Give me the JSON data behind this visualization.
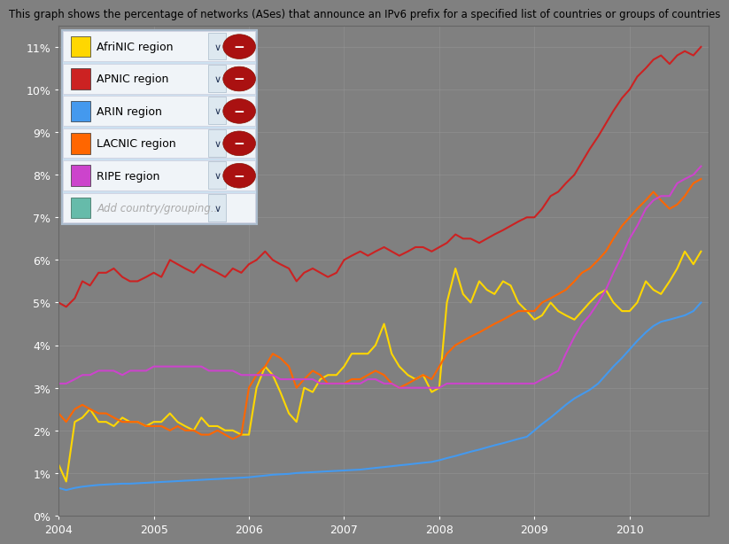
{
  "title": "This graph shows the percentage of networks (ASes) that announce an IPv6 prefix for a specified list of countries or groups of countries",
  "title_fontsize": 8.5,
  "background_color": "#808080",
  "plot_bg_color": "#808080",
  "ylim": [
    0,
    0.115
  ],
  "xlim_start": 2004.0,
  "xlim_end": 2010.83,
  "yticks": [
    0,
    0.01,
    0.02,
    0.03,
    0.04,
    0.05,
    0.06,
    0.07,
    0.08,
    0.09,
    0.1,
    0.11
  ],
  "ytick_labels": [
    "0%",
    "1%",
    "2%",
    "3%",
    "4%",
    "5%",
    "6%",
    "7%",
    "8%",
    "9%",
    "10%",
    "11%"
  ],
  "xtick_positions": [
    2004,
    2005,
    2006,
    2007,
    2008,
    2009,
    2010
  ],
  "xtick_labels": [
    "2004",
    "2005",
    "2006",
    "2007",
    "2008",
    "2009",
    "2010"
  ],
  "series": [
    {
      "name": "AfriNIC region",
      "color": "#FFD700",
      "lw": 1.5,
      "x": [
        2004.0,
        2004.08,
        2004.17,
        2004.25,
        2004.33,
        2004.42,
        2004.5,
        2004.58,
        2004.67,
        2004.75,
        2004.83,
        2004.92,
        2005.0,
        2005.08,
        2005.17,
        2005.25,
        2005.33,
        2005.42,
        2005.5,
        2005.58,
        2005.67,
        2005.75,
        2005.83,
        2005.92,
        2006.0,
        2006.08,
        2006.17,
        2006.25,
        2006.33,
        2006.42,
        2006.5,
        2006.58,
        2006.67,
        2006.75,
        2006.83,
        2006.92,
        2007.0,
        2007.08,
        2007.17,
        2007.25,
        2007.33,
        2007.42,
        2007.5,
        2007.58,
        2007.67,
        2007.75,
        2007.83,
        2007.92,
        2008.0,
        2008.08,
        2008.17,
        2008.25,
        2008.33,
        2008.42,
        2008.5,
        2008.58,
        2008.67,
        2008.75,
        2008.83,
        2008.92,
        2009.0,
        2009.08,
        2009.17,
        2009.25,
        2009.33,
        2009.42,
        2009.5,
        2009.58,
        2009.67,
        2009.75,
        2009.83,
        2009.92,
        2010.0,
        2010.08,
        2010.17,
        2010.25,
        2010.33,
        2010.42,
        2010.5,
        2010.58,
        2010.67,
        2010.75
      ],
      "y": [
        0.012,
        0.008,
        0.022,
        0.023,
        0.025,
        0.022,
        0.022,
        0.021,
        0.023,
        0.022,
        0.022,
        0.021,
        0.022,
        0.022,
        0.024,
        0.022,
        0.021,
        0.02,
        0.023,
        0.021,
        0.021,
        0.02,
        0.02,
        0.019,
        0.019,
        0.03,
        0.035,
        0.033,
        0.029,
        0.024,
        0.022,
        0.03,
        0.029,
        0.032,
        0.033,
        0.033,
        0.035,
        0.038,
        0.038,
        0.038,
        0.04,
        0.045,
        0.038,
        0.035,
        0.033,
        0.032,
        0.033,
        0.029,
        0.03,
        0.05,
        0.058,
        0.052,
        0.05,
        0.055,
        0.053,
        0.052,
        0.055,
        0.054,
        0.05,
        0.048,
        0.046,
        0.047,
        0.05,
        0.048,
        0.047,
        0.046,
        0.048,
        0.05,
        0.052,
        0.053,
        0.05,
        0.048,
        0.048,
        0.05,
        0.055,
        0.053,
        0.052,
        0.055,
        0.058,
        0.062,
        0.059,
        0.062
      ]
    },
    {
      "name": "APNIC region",
      "color": "#CC2222",
      "lw": 1.5,
      "x": [
        2004.0,
        2004.08,
        2004.17,
        2004.25,
        2004.33,
        2004.42,
        2004.5,
        2004.58,
        2004.67,
        2004.75,
        2004.83,
        2004.92,
        2005.0,
        2005.08,
        2005.17,
        2005.25,
        2005.33,
        2005.42,
        2005.5,
        2005.58,
        2005.67,
        2005.75,
        2005.83,
        2005.92,
        2006.0,
        2006.08,
        2006.17,
        2006.25,
        2006.33,
        2006.42,
        2006.5,
        2006.58,
        2006.67,
        2006.75,
        2006.83,
        2006.92,
        2007.0,
        2007.08,
        2007.17,
        2007.25,
        2007.33,
        2007.42,
        2007.5,
        2007.58,
        2007.67,
        2007.75,
        2007.83,
        2007.92,
        2008.0,
        2008.08,
        2008.17,
        2008.25,
        2008.33,
        2008.42,
        2008.5,
        2008.58,
        2008.67,
        2008.75,
        2008.83,
        2008.92,
        2009.0,
        2009.08,
        2009.17,
        2009.25,
        2009.33,
        2009.42,
        2009.5,
        2009.58,
        2009.67,
        2009.75,
        2009.83,
        2009.92,
        2010.0,
        2010.08,
        2010.17,
        2010.25,
        2010.33,
        2010.42,
        2010.5,
        2010.58,
        2010.67,
        2010.75
      ],
      "y": [
        0.05,
        0.049,
        0.051,
        0.055,
        0.054,
        0.057,
        0.057,
        0.058,
        0.056,
        0.055,
        0.055,
        0.056,
        0.057,
        0.056,
        0.06,
        0.059,
        0.058,
        0.057,
        0.059,
        0.058,
        0.057,
        0.056,
        0.058,
        0.057,
        0.059,
        0.06,
        0.062,
        0.06,
        0.059,
        0.058,
        0.055,
        0.057,
        0.058,
        0.057,
        0.056,
        0.057,
        0.06,
        0.061,
        0.062,
        0.061,
        0.062,
        0.063,
        0.062,
        0.061,
        0.062,
        0.063,
        0.063,
        0.062,
        0.063,
        0.064,
        0.066,
        0.065,
        0.065,
        0.064,
        0.065,
        0.066,
        0.067,
        0.068,
        0.069,
        0.07,
        0.07,
        0.072,
        0.075,
        0.076,
        0.078,
        0.08,
        0.083,
        0.086,
        0.089,
        0.092,
        0.095,
        0.098,
        0.1,
        0.103,
        0.105,
        0.107,
        0.108,
        0.106,
        0.108,
        0.109,
        0.108,
        0.11
      ]
    },
    {
      "name": "ARIN region",
      "color": "#4499EE",
      "lw": 1.5,
      "x": [
        2004.0,
        2004.08,
        2004.17,
        2004.25,
        2004.33,
        2004.42,
        2004.5,
        2004.58,
        2004.67,
        2004.75,
        2004.83,
        2004.92,
        2005.0,
        2005.08,
        2005.17,
        2005.25,
        2005.33,
        2005.42,
        2005.5,
        2005.58,
        2005.67,
        2005.75,
        2005.83,
        2005.92,
        2006.0,
        2006.08,
        2006.17,
        2006.25,
        2006.33,
        2006.42,
        2006.5,
        2006.58,
        2006.67,
        2006.75,
        2006.83,
        2006.92,
        2007.0,
        2007.08,
        2007.17,
        2007.25,
        2007.33,
        2007.42,
        2007.5,
        2007.58,
        2007.67,
        2007.75,
        2007.83,
        2007.92,
        2008.0,
        2008.08,
        2008.17,
        2008.25,
        2008.33,
        2008.42,
        2008.5,
        2008.58,
        2008.67,
        2008.75,
        2008.83,
        2008.92,
        2009.0,
        2009.08,
        2009.17,
        2009.25,
        2009.33,
        2009.42,
        2009.5,
        2009.58,
        2009.67,
        2009.75,
        2009.83,
        2009.92,
        2010.0,
        2010.08,
        2010.17,
        2010.25,
        2010.33,
        2010.42,
        2010.5,
        2010.58,
        2010.67,
        2010.75
      ],
      "y": [
        0.0065,
        0.006,
        0.0065,
        0.0068,
        0.007,
        0.0072,
        0.0073,
        0.0074,
        0.0075,
        0.0075,
        0.0076,
        0.0077,
        0.0078,
        0.0079,
        0.008,
        0.0081,
        0.0082,
        0.0083,
        0.0084,
        0.0085,
        0.0086,
        0.0087,
        0.0088,
        0.0089,
        0.009,
        0.0092,
        0.0094,
        0.0096,
        0.0097,
        0.0098,
        0.01,
        0.0101,
        0.0102,
        0.0103,
        0.0104,
        0.0105,
        0.0106,
        0.0107,
        0.0108,
        0.011,
        0.0112,
        0.0114,
        0.0116,
        0.0118,
        0.012,
        0.0122,
        0.0124,
        0.0126,
        0.013,
        0.0135,
        0.014,
        0.0145,
        0.015,
        0.0155,
        0.016,
        0.0165,
        0.017,
        0.0175,
        0.018,
        0.0185,
        0.02,
        0.0215,
        0.023,
        0.0245,
        0.026,
        0.0275,
        0.0285,
        0.0295,
        0.031,
        0.033,
        0.035,
        0.037,
        0.039,
        0.041,
        0.043,
        0.0445,
        0.0455,
        0.046,
        0.0465,
        0.047,
        0.048,
        0.05
      ]
    },
    {
      "name": "LACNIC region",
      "color": "#FF6600",
      "lw": 1.5,
      "x": [
        2004.0,
        2004.08,
        2004.17,
        2004.25,
        2004.33,
        2004.42,
        2004.5,
        2004.58,
        2004.67,
        2004.75,
        2004.83,
        2004.92,
        2005.0,
        2005.08,
        2005.17,
        2005.25,
        2005.33,
        2005.42,
        2005.5,
        2005.58,
        2005.67,
        2005.75,
        2005.83,
        2005.92,
        2006.0,
        2006.08,
        2006.17,
        2006.25,
        2006.33,
        2006.42,
        2006.5,
        2006.58,
        2006.67,
        2006.75,
        2006.83,
        2006.92,
        2007.0,
        2007.08,
        2007.17,
        2007.25,
        2007.33,
        2007.42,
        2007.5,
        2007.58,
        2007.67,
        2007.75,
        2007.83,
        2007.92,
        2008.0,
        2008.08,
        2008.17,
        2008.25,
        2008.33,
        2008.42,
        2008.5,
        2008.58,
        2008.67,
        2008.75,
        2008.83,
        2008.92,
        2009.0,
        2009.08,
        2009.17,
        2009.25,
        2009.33,
        2009.42,
        2009.5,
        2009.58,
        2009.67,
        2009.75,
        2009.83,
        2009.92,
        2010.0,
        2010.08,
        2010.17,
        2010.25,
        2010.33,
        2010.42,
        2010.5,
        2010.58,
        2010.67,
        2010.75
      ],
      "y": [
        0.024,
        0.022,
        0.025,
        0.026,
        0.025,
        0.024,
        0.024,
        0.023,
        0.022,
        0.022,
        0.022,
        0.021,
        0.021,
        0.021,
        0.02,
        0.021,
        0.02,
        0.02,
        0.019,
        0.019,
        0.02,
        0.019,
        0.018,
        0.019,
        0.03,
        0.033,
        0.035,
        0.038,
        0.037,
        0.035,
        0.03,
        0.032,
        0.034,
        0.033,
        0.031,
        0.031,
        0.031,
        0.032,
        0.032,
        0.033,
        0.034,
        0.033,
        0.031,
        0.03,
        0.031,
        0.032,
        0.033,
        0.032,
        0.035,
        0.038,
        0.04,
        0.041,
        0.042,
        0.043,
        0.044,
        0.045,
        0.046,
        0.047,
        0.048,
        0.048,
        0.048,
        0.05,
        0.051,
        0.052,
        0.053,
        0.055,
        0.057,
        0.058,
        0.06,
        0.062,
        0.065,
        0.068,
        0.07,
        0.072,
        0.074,
        0.076,
        0.074,
        0.072,
        0.073,
        0.075,
        0.078,
        0.079
      ]
    },
    {
      "name": "RIPE region",
      "color": "#CC44CC",
      "lw": 1.5,
      "x": [
        2004.0,
        2004.08,
        2004.17,
        2004.25,
        2004.33,
        2004.42,
        2004.5,
        2004.58,
        2004.67,
        2004.75,
        2004.83,
        2004.92,
        2005.0,
        2005.08,
        2005.17,
        2005.25,
        2005.33,
        2005.42,
        2005.5,
        2005.58,
        2005.67,
        2005.75,
        2005.83,
        2005.92,
        2006.0,
        2006.08,
        2006.17,
        2006.25,
        2006.33,
        2006.42,
        2006.5,
        2006.58,
        2006.67,
        2006.75,
        2006.83,
        2006.92,
        2007.0,
        2007.08,
        2007.17,
        2007.25,
        2007.33,
        2007.42,
        2007.5,
        2007.58,
        2007.67,
        2007.75,
        2007.83,
        2007.92,
        2008.0,
        2008.08,
        2008.17,
        2008.25,
        2008.33,
        2008.42,
        2008.5,
        2008.58,
        2008.67,
        2008.75,
        2008.83,
        2008.92,
        2009.0,
        2009.08,
        2009.17,
        2009.25,
        2009.33,
        2009.42,
        2009.5,
        2009.58,
        2009.67,
        2009.75,
        2009.83,
        2009.92,
        2010.0,
        2010.08,
        2010.17,
        2010.25,
        2010.33,
        2010.42,
        2010.5,
        2010.58,
        2010.67,
        2010.75
      ],
      "y": [
        0.031,
        0.031,
        0.032,
        0.033,
        0.033,
        0.034,
        0.034,
        0.034,
        0.033,
        0.034,
        0.034,
        0.034,
        0.035,
        0.035,
        0.035,
        0.035,
        0.035,
        0.035,
        0.035,
        0.034,
        0.034,
        0.034,
        0.034,
        0.033,
        0.033,
        0.033,
        0.033,
        0.033,
        0.032,
        0.032,
        0.032,
        0.032,
        0.032,
        0.031,
        0.031,
        0.031,
        0.031,
        0.031,
        0.031,
        0.032,
        0.032,
        0.031,
        0.031,
        0.03,
        0.03,
        0.03,
        0.03,
        0.03,
        0.03,
        0.031,
        0.031,
        0.031,
        0.031,
        0.031,
        0.031,
        0.031,
        0.031,
        0.031,
        0.031,
        0.031,
        0.031,
        0.032,
        0.033,
        0.034,
        0.038,
        0.042,
        0.045,
        0.047,
        0.05,
        0.053,
        0.057,
        0.061,
        0.065,
        0.068,
        0.072,
        0.074,
        0.075,
        0.075,
        0.078,
        0.079,
        0.08,
        0.082
      ]
    }
  ],
  "legend_items": [
    {
      "label": "AfriNIC region",
      "color": "#FFD700"
    },
    {
      "label": "APNIC region",
      "color": "#CC2222"
    },
    {
      "label": "ARIN region",
      "color": "#4499EE"
    },
    {
      "label": "LACNIC region",
      "color": "#FF6600"
    },
    {
      "label": "RIPE region",
      "color": "#CC44CC"
    }
  ],
  "legend_extra": "Add country/grouping..",
  "legend_extra_color": "#66BBAA",
  "legend_outer_bg": "#cce0f0",
  "legend_outer_border": "#aabbcc",
  "legend_row_bg": "#f0f4f8",
  "legend_row_border": "#ccccdd",
  "minus_btn_color": "#AA1111",
  "dropdown_color": "#8899aa",
  "grid_color": "#999999",
  "tick_color": "#ffffff",
  "tick_fontsize": 9
}
